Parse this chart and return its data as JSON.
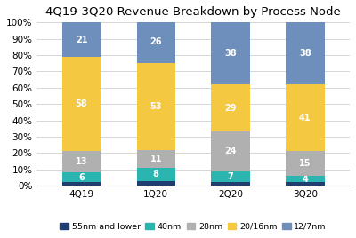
{
  "title": "4Q19-3Q20 Revenue Breakdown by Process Node",
  "categories": [
    "4Q19",
    "1Q20",
    "2Q20",
    "3Q20"
  ],
  "series": {
    "55nm and lower": [
      2,
      3,
      2,
      2
    ],
    "40nm": [
      6,
      8,
      7,
      4
    ],
    "28nm": [
      13,
      11,
      24,
      15
    ],
    "20/16nm": [
      58,
      53,
      29,
      41
    ],
    "12/7nm": [
      21,
      26,
      38,
      38
    ]
  },
  "colors": {
    "55nm and lower": "#1f3d6e",
    "40nm": "#2ab5b0",
    "28nm": "#b0b0b0",
    "20/16nm": "#f5c842",
    "12/7nm": "#6e8fbb"
  },
  "legend_order": [
    "55nm and lower",
    "40nm",
    "28nm",
    "20/16nm",
    "12/7nm"
  ],
  "ylim": [
    0,
    100
  ],
  "yticks": [
    0,
    10,
    20,
    30,
    40,
    50,
    60,
    70,
    80,
    90,
    100
  ],
  "ytick_labels": [
    "0%",
    "10%",
    "20%",
    "30%",
    "40%",
    "50%",
    "60%",
    "70%",
    "80%",
    "90%",
    "100%"
  ],
  "bar_width": 0.52,
  "label_color": "white",
  "label_fontsize": 7,
  "title_fontsize": 9.5,
  "legend_fontsize": 6.8,
  "axis_label_fontsize": 7.5,
  "background_color": "#ffffff",
  "grid_color": "#d0d0d0"
}
